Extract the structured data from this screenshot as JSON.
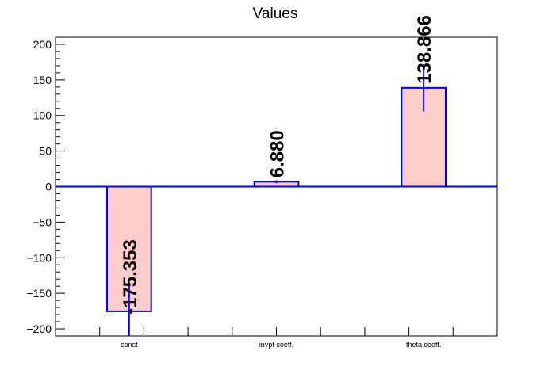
{
  "chart_data": {
    "type": "bar",
    "title": "Values",
    "categories": [
      "const",
      "invpt coeff.",
      "theta coeff."
    ],
    "values": [
      -175.353,
      6.88,
      138.866
    ],
    "value_labels": [
      "-175.353",
      "6.880",
      "138.866"
    ],
    "errors": [
      36,
      2,
      33
    ],
    "ylim": [
      -210,
      210
    ],
    "yticks": [
      -200,
      -150,
      -100,
      -50,
      0,
      50,
      100,
      150,
      200
    ],
    "ytick_labels": [
      "−200",
      "−150",
      "−100",
      "−50",
      "0",
      "50",
      "100",
      "150",
      "200"
    ],
    "colors": {
      "bar_fill": "#ffcccc",
      "bar_edge": "#0000ff",
      "axis": "#000000"
    },
    "grid": false,
    "legend": "none"
  }
}
